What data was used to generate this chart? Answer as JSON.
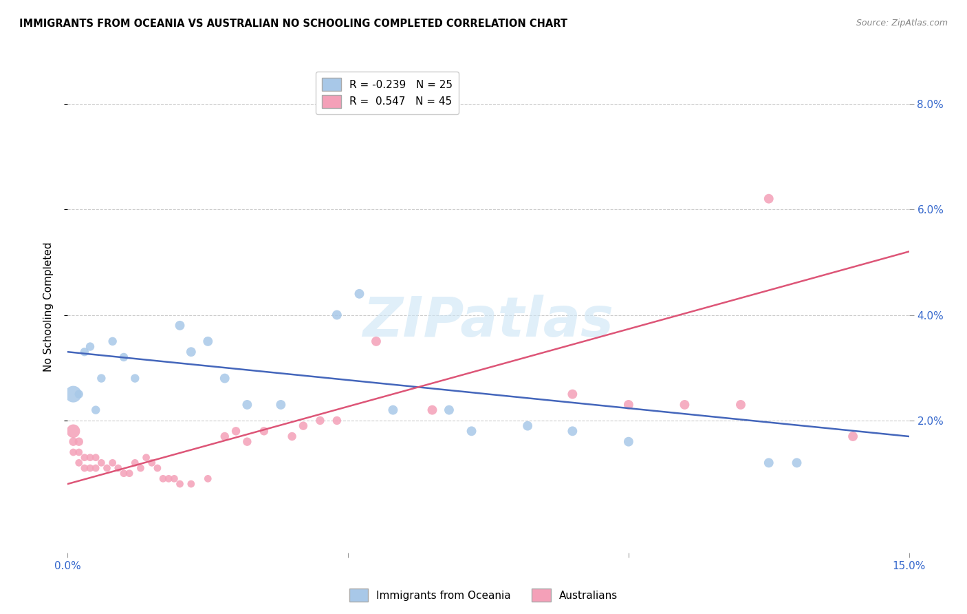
{
  "title": "IMMIGRANTS FROM OCEANIA VS AUSTRALIAN NO SCHOOLING COMPLETED CORRELATION CHART",
  "source": "Source: ZipAtlas.com",
  "ylabel": "No Schooling Completed",
  "ytick_labels": [
    "2.0%",
    "4.0%",
    "6.0%",
    "8.0%"
  ],
  "ytick_values": [
    0.02,
    0.04,
    0.06,
    0.08
  ],
  "xlim": [
    0.0,
    0.15
  ],
  "ylim": [
    -0.005,
    0.088
  ],
  "blue_R": -0.239,
  "blue_N": 25,
  "pink_R": 0.547,
  "pink_N": 45,
  "blue_color": "#a8c8e8",
  "pink_color": "#f4a0b8",
  "blue_line_color": "#4466bb",
  "pink_line_color": "#dd5577",
  "watermark": "ZIPatlas",
  "blue_points_x": [
    0.001,
    0.002,
    0.003,
    0.004,
    0.005,
    0.006,
    0.008,
    0.01,
    0.012,
    0.02,
    0.022,
    0.025,
    0.028,
    0.032,
    0.038,
    0.048,
    0.052,
    0.058,
    0.068,
    0.072,
    0.082,
    0.09,
    0.1,
    0.125,
    0.13
  ],
  "blue_points_y": [
    0.025,
    0.025,
    0.033,
    0.034,
    0.022,
    0.028,
    0.035,
    0.032,
    0.028,
    0.038,
    0.033,
    0.035,
    0.028,
    0.023,
    0.023,
    0.04,
    0.044,
    0.022,
    0.022,
    0.018,
    0.019,
    0.018,
    0.016,
    0.012,
    0.012
  ],
  "blue_sizes": [
    300,
    80,
    80,
    80,
    80,
    80,
    80,
    80,
    80,
    100,
    100,
    100,
    100,
    100,
    100,
    100,
    100,
    100,
    100,
    100,
    100,
    100,
    100,
    100,
    100
  ],
  "pink_points_x": [
    0.001,
    0.001,
    0.001,
    0.002,
    0.002,
    0.002,
    0.003,
    0.003,
    0.004,
    0.004,
    0.005,
    0.005,
    0.006,
    0.007,
    0.008,
    0.009,
    0.01,
    0.011,
    0.012,
    0.013,
    0.014,
    0.015,
    0.016,
    0.017,
    0.018,
    0.019,
    0.02,
    0.022,
    0.025,
    0.028,
    0.03,
    0.032,
    0.035,
    0.04,
    0.042,
    0.045,
    0.048,
    0.055,
    0.065,
    0.09,
    0.1,
    0.11,
    0.12,
    0.125,
    0.14
  ],
  "pink_points_y": [
    0.018,
    0.016,
    0.014,
    0.016,
    0.014,
    0.012,
    0.013,
    0.011,
    0.013,
    0.011,
    0.013,
    0.011,
    0.012,
    0.011,
    0.012,
    0.011,
    0.01,
    0.01,
    0.012,
    0.011,
    0.013,
    0.012,
    0.011,
    0.009,
    0.009,
    0.009,
    0.008,
    0.008,
    0.009,
    0.017,
    0.018,
    0.016,
    0.018,
    0.017,
    0.019,
    0.02,
    0.02,
    0.035,
    0.022,
    0.025,
    0.023,
    0.023,
    0.023,
    0.062,
    0.017
  ],
  "pink_sizes": [
    200,
    80,
    60,
    80,
    60,
    60,
    60,
    60,
    60,
    60,
    60,
    60,
    60,
    60,
    60,
    60,
    60,
    60,
    60,
    60,
    60,
    60,
    60,
    60,
    60,
    60,
    60,
    60,
    60,
    80,
    80,
    80,
    80,
    80,
    80,
    80,
    80,
    100,
    100,
    100,
    100,
    100,
    100,
    100,
    100
  ],
  "blue_line_y_start": 0.033,
  "blue_line_y_end": 0.017,
  "pink_line_y_start": 0.008,
  "pink_line_y_end": 0.052
}
